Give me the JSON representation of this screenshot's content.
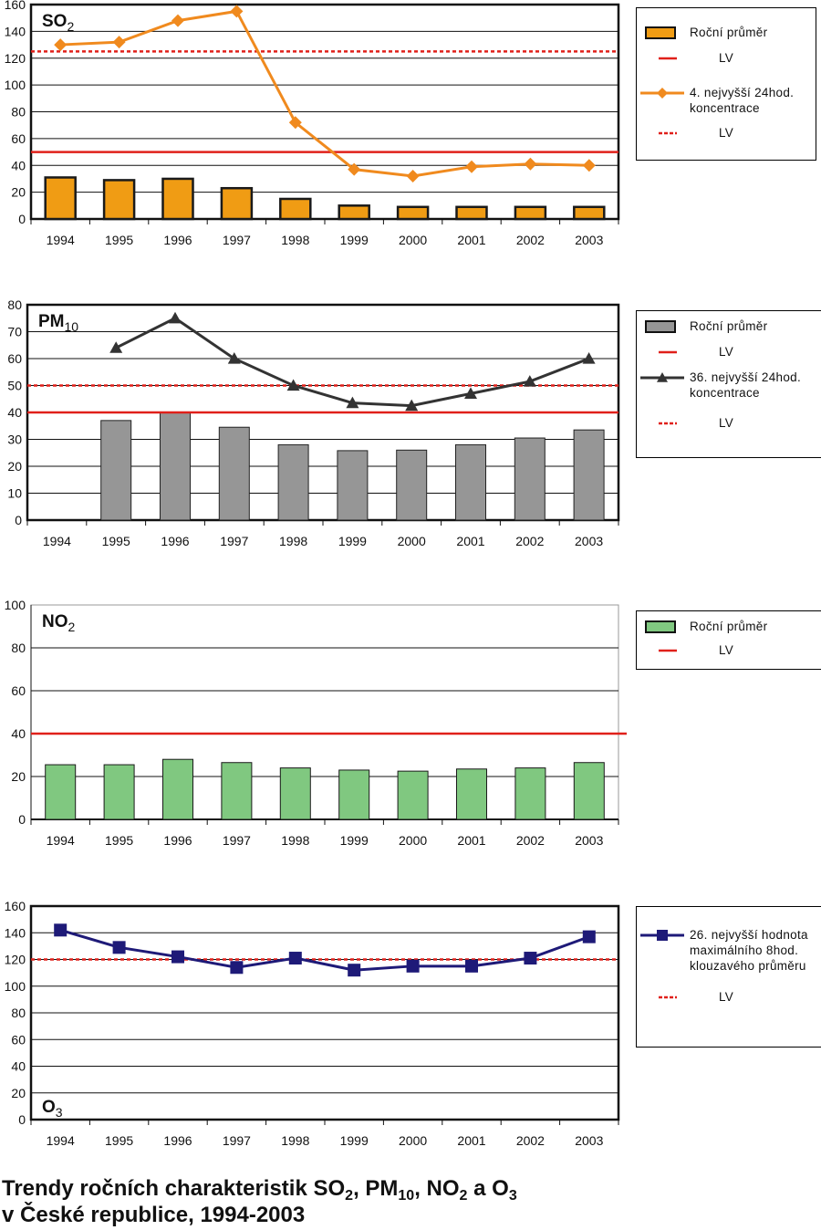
{
  "title": {
    "line1": [
      {
        "t": "Trendy ročních charakteristik SO"
      },
      {
        "t": "2",
        "sub": true
      },
      {
        "t": ", PM"
      },
      {
        "t": "10",
        "sub": true
      },
      {
        "t": ", NO"
      },
      {
        "t": "2",
        "sub": true
      },
      {
        "t": " a O"
      },
      {
        "t": "3",
        "sub": true
      }
    ],
    "line2": "v České republice, 1994-2003"
  },
  "chart_data": [
    {
      "type": "bar+line",
      "label": [
        {
          "t": "SO"
        },
        {
          "t": "2",
          "sub": true
        }
      ],
      "label_pos": "top-left",
      "categories": [
        "1994",
        "1995",
        "1996",
        "1997",
        "1998",
        "1999",
        "2000",
        "2001",
        "2002",
        "2003"
      ],
      "ylim": [
        0,
        160
      ],
      "yticks": [
        0,
        20,
        40,
        60,
        80,
        100,
        120,
        140,
        160
      ],
      "grid": true,
      "bars": {
        "name": "Roční průměr",
        "color": "#F09C14",
        "outline": "#1a1a1a",
        "values": [
          31,
          29,
          30,
          23,
          15,
          10,
          9,
          9,
          9,
          9
        ]
      },
      "line": {
        "name": "4. nejvyšší 24hod. koncentrace",
        "color": "#F08A1E",
        "marker": "diamond",
        "values": [
          130,
          132,
          148,
          155,
          72,
          37,
          32,
          39,
          41,
          40
        ]
      },
      "limits": [
        {
          "name": "LV",
          "value": 50,
          "style": "solid",
          "color": "#E0201A"
        },
        {
          "name": "LV",
          "value": 125,
          "style": "dotted",
          "color": "#E0201A"
        }
      ],
      "legend": [
        {
          "kind": "bar",
          "label": "Roční průměr"
        },
        {
          "kind": "solid",
          "label": "LV"
        },
        {
          "kind": "line-diamond",
          "label": "4. nejvyšší 24hod.\nkoncentrace"
        },
        {
          "kind": "dotted",
          "label": "LV"
        }
      ]
    },
    {
      "type": "bar+line",
      "label": [
        {
          "t": "PM"
        },
        {
          "t": "10",
          "sub": true
        }
      ],
      "label_pos": "top-left",
      "categories": [
        "1994",
        "1995",
        "1996",
        "1997",
        "1998",
        "1999",
        "2000",
        "2001",
        "2002",
        "2003"
      ],
      "ylim": [
        0,
        80
      ],
      "yticks": [
        0,
        10,
        20,
        30,
        40,
        50,
        60,
        70,
        80
      ],
      "grid": true,
      "bars": {
        "name": "Roční průměr",
        "color": "#969696",
        "outline": "#222222",
        "values": [
          null,
          37,
          40,
          34.5,
          28,
          25.8,
          26,
          28,
          30.5,
          33.5
        ]
      },
      "line": {
        "name": "36. nejvyšší 24hod. koncentrace",
        "color": "#333333",
        "marker": "triangle",
        "values": [
          null,
          64,
          75,
          60,
          50,
          43.5,
          42.5,
          47,
          51.5,
          60
        ]
      },
      "limits": [
        {
          "name": "LV",
          "value": 40,
          "style": "solid",
          "color": "#E0201A"
        },
        {
          "name": "LV",
          "value": 50,
          "style": "dotted",
          "color": "#E0201A"
        }
      ],
      "legend": [
        {
          "kind": "bar",
          "label": "Roční průměr"
        },
        {
          "kind": "solid",
          "label": "LV"
        },
        {
          "kind": "line-triangle",
          "label": "36. nejvyšší 24hod.\nkoncentrace"
        },
        {
          "kind": "dotted",
          "label": "LV"
        }
      ]
    },
    {
      "type": "bar",
      "label": [
        {
          "t": "NO"
        },
        {
          "t": "2",
          "sub": true
        }
      ],
      "label_pos": "top-left",
      "categories": [
        "1994",
        "1995",
        "1996",
        "1997",
        "1998",
        "1999",
        "2000",
        "2001",
        "2002",
        "2003"
      ],
      "ylim": [
        0,
        100
      ],
      "yticks": [
        0,
        20,
        40,
        60,
        80,
        100
      ],
      "grid": true,
      "bars": {
        "name": "Roční průměr",
        "color": "#80C880",
        "outline": "#1a1a1a",
        "values": [
          25.5,
          25.5,
          28,
          26.5,
          24,
          23,
          22.5,
          23.5,
          24,
          26.5
        ]
      },
      "limits": [
        {
          "name": "LV",
          "value": 40,
          "style": "solid",
          "color": "#E0201A"
        }
      ],
      "legend": [
        {
          "kind": "bar",
          "label": "Roční průměr"
        },
        {
          "kind": "solid",
          "label": "LV"
        }
      ]
    },
    {
      "type": "line",
      "label": [
        {
          "t": "O"
        },
        {
          "t": "3",
          "sub": true
        }
      ],
      "label_pos": "bottom-left",
      "categories": [
        "1994",
        "1995",
        "1996",
        "1997",
        "1998",
        "1999",
        "2000",
        "2001",
        "2002",
        "2003"
      ],
      "ylim": [
        0,
        160
      ],
      "yticks": [
        0,
        20,
        40,
        60,
        80,
        100,
        120,
        140,
        160
      ],
      "grid": true,
      "line": {
        "name": "26. nejvyšší hodnota maximálního 8hod. klouzavého průměru",
        "color": "#1E1A78",
        "marker": "square",
        "values": [
          142,
          129,
          122,
          114,
          121,
          112,
          115,
          115,
          121,
          137
        ]
      },
      "limits": [
        {
          "name": "LV",
          "value": 120,
          "style": "dotted",
          "color": "#E0201A"
        }
      ],
      "legend": [
        {
          "kind": "line-square",
          "label": "26. nejvyšší hodnota\nmaximálního 8hod.\nklouzavého průměru"
        },
        {
          "kind": "dotted",
          "label": "LV"
        }
      ]
    }
  ]
}
